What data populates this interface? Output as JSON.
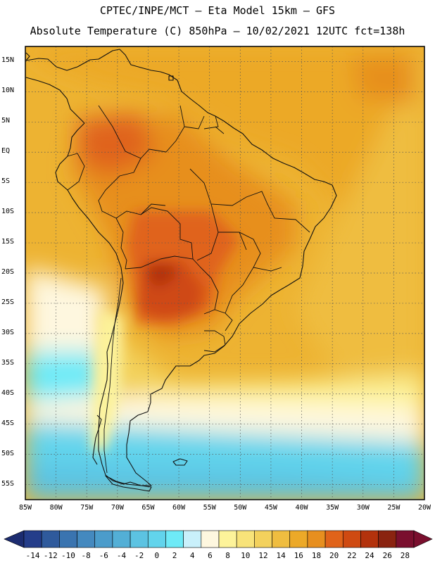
{
  "header": {
    "title_line1": "CPTEC/INPE/MCT – Eta Model 15km – GFS",
    "title_line2": "Absolute Temperature (C) 850hPa – 10/02/2021 12UTC fct=138h"
  },
  "map": {
    "lat_labels": [
      "15N",
      "10N",
      "5N",
      "EQ",
      "5S",
      "10S",
      "15S",
      "20S",
      "25S",
      "30S",
      "35S",
      "40S",
      "45S",
      "50S",
      "55S"
    ],
    "lat_values": [
      15,
      10,
      5,
      0,
      -5,
      -10,
      -15,
      -20,
      -25,
      -30,
      -35,
      -40,
      -45,
      -50,
      -55
    ],
    "lon_labels": [
      "85W",
      "80W",
      "75W",
      "70W",
      "65W",
      "60W",
      "55W",
      "50W",
      "45W",
      "40W",
      "35W",
      "30W",
      "25W",
      "20W"
    ],
    "lon_values": [
      -85,
      -80,
      -75,
      -70,
      -65,
      -60,
      -55,
      -50,
      -45,
      -40,
      -35,
      -30,
      -25,
      -20
    ],
    "lat_range": [
      -57.5,
      17.5
    ],
    "lon_range": [
      -85,
      -20
    ],
    "grid": "dotted"
  },
  "colorbar": {
    "labels": [
      "-14",
      "-12",
      "-10",
      "-8",
      "-6",
      "-4",
      "-2",
      "0",
      "2",
      "4",
      "6",
      "8",
      "10",
      "12",
      "14",
      "16",
      "18",
      "20",
      "22",
      "24",
      "26",
      "28"
    ],
    "colors": [
      "#243d8a",
      "#2f5a9c",
      "#3a74b0",
      "#4489bf",
      "#4b9ccb",
      "#53afd6",
      "#5cc3e2",
      "#62d4ec",
      "#6eeaf7",
      "#c9f0fb",
      "#fef7df",
      "#fdf39a",
      "#f8e379",
      "#f3d15c",
      "#efbd40",
      "#eca928",
      "#e78f1f",
      "#e0631a",
      "#cf4a12",
      "#b3320c",
      "#8a2310",
      "#7a0f2e"
    ],
    "under_color": "#1c2c70",
    "over_color": "#7a0f2e"
  }
}
